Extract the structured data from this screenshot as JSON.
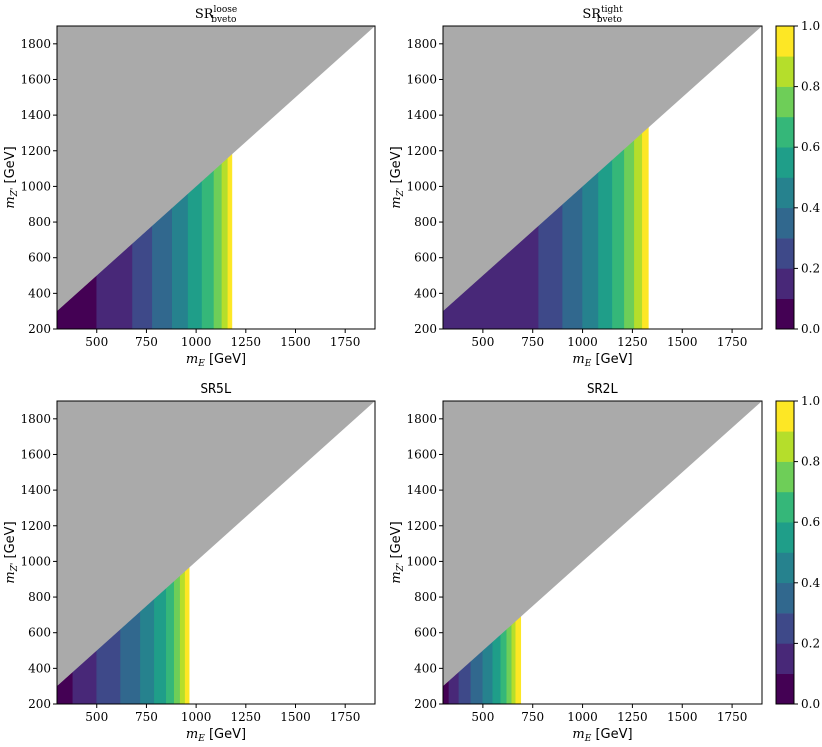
{
  "chart_data": [
    {
      "type": "heatmap",
      "name": "panel-sr-bveto-loose",
      "title": {
        "main": "SR",
        "sup": "loose",
        "sub": "bveto",
        "mono": false
      },
      "xlabel": {
        "var": "m",
        "sub": "E",
        "unit": "[GeV]"
      },
      "ylabel": {
        "var": "m",
        "sub": "Z'",
        "unit": "[GeV]"
      },
      "xlim": [
        300,
        1900
      ],
      "ylim": [
        200,
        1900
      ],
      "xticks": [
        500,
        750,
        1000,
        1250,
        1500,
        1750
      ],
      "yticks": [
        200,
        400,
        600,
        800,
        1000,
        1200,
        1400,
        1600,
        1800
      ],
      "excluded_region": "m_Z' > m_E (grey)",
      "contour_x_edges": [
        300,
        500,
        680,
        780,
        880,
        960,
        1030,
        1090,
        1130,
        1160,
        1180
      ],
      "contour_levels": [
        0.1,
        0.2,
        0.3,
        0.4,
        0.5,
        0.6,
        0.7,
        0.8,
        0.9,
        1.0
      ]
    },
    {
      "type": "heatmap",
      "name": "panel-sr-bveto-tight",
      "title": {
        "main": "SR",
        "sup": "tight",
        "sub": "bveto",
        "mono": false
      },
      "xlabel": {
        "var": "m",
        "sub": "E",
        "unit": "[GeV]"
      },
      "ylabel": {
        "var": "m",
        "sub": "Z'",
        "unit": "[GeV]"
      },
      "xlim": [
        300,
        1900
      ],
      "ylim": [
        200,
        1900
      ],
      "xticks": [
        500,
        750,
        1000,
        1250,
        1500,
        1750
      ],
      "yticks": [
        200,
        400,
        600,
        800,
        1000,
        1200,
        1400,
        1600,
        1800
      ],
      "excluded_region": "m_Z' > m_E (grey)",
      "contour_x_edges": [
        300,
        300,
        780,
        900,
        1000,
        1080,
        1150,
        1210,
        1260,
        1300,
        1330
      ],
      "contour_levels": [
        0.1,
        0.2,
        0.3,
        0.4,
        0.5,
        0.6,
        0.7,
        0.8,
        0.9,
        1.0
      ]
    },
    {
      "type": "heatmap",
      "name": "panel-sr5l",
      "title": {
        "main": "SR5L",
        "sup": "",
        "sub": "",
        "mono": true
      },
      "xlabel": {
        "var": "m",
        "sub": "E",
        "unit": "[GeV]"
      },
      "ylabel": {
        "var": "m",
        "sub": "Z'",
        "unit": "[GeV]"
      },
      "xlim": [
        300,
        1900
      ],
      "ylim": [
        200,
        1900
      ],
      "xticks": [
        500,
        750,
        1000,
        1250,
        1500,
        1750
      ],
      "yticks": [
        200,
        400,
        600,
        800,
        1000,
        1200,
        1400,
        1600,
        1800
      ],
      "excluded_region": "m_Z' > m_E (grey)",
      "contour_x_edges": [
        300,
        380,
        500,
        620,
        720,
        790,
        850,
        890,
        920,
        945,
        965
      ],
      "contour_levels": [
        0.1,
        0.2,
        0.3,
        0.4,
        0.5,
        0.6,
        0.7,
        0.8,
        0.9,
        1.0
      ]
    },
    {
      "type": "heatmap",
      "name": "panel-sr2l",
      "title": {
        "main": "SR2L",
        "sup": "",
        "sub": "",
        "mono": true
      },
      "xlabel": {
        "var": "m",
        "sub": "E",
        "unit": "[GeV]"
      },
      "ylabel": {
        "var": "m",
        "sub": "Z'",
        "unit": "[GeV]"
      },
      "xlim": [
        300,
        1900
      ],
      "ylim": [
        200,
        1900
      ],
      "xticks": [
        500,
        750,
        1000,
        1250,
        1500,
        1750
      ],
      "yticks": [
        200,
        400,
        600,
        800,
        1000,
        1200,
        1400,
        1600,
        1800
      ],
      "excluded_region": "m_Z' > m_E (grey)",
      "contour_x_edges": [
        300,
        330,
        380,
        440,
        500,
        550,
        590,
        620,
        645,
        665,
        690
      ],
      "contour_levels": [
        0.1,
        0.2,
        0.3,
        0.4,
        0.5,
        0.6,
        0.7,
        0.8,
        0.9,
        1.0
      ]
    }
  ],
  "colorbar": {
    "range": [
      0.0,
      1.0
    ],
    "ticks": [
      "0.0",
      "0.2",
      "0.4",
      "0.6",
      "0.8",
      "1.0"
    ],
    "colors": [
      "#440154",
      "#482878",
      "#3e4989",
      "#31688e",
      "#26828e",
      "#1f9e89",
      "#35b779",
      "#6ece58",
      "#b5de2b",
      "#fde725"
    ]
  },
  "colors": {
    "excluded": "#aaaaaa",
    "background": "#ffffff",
    "axes": "#000000"
  }
}
